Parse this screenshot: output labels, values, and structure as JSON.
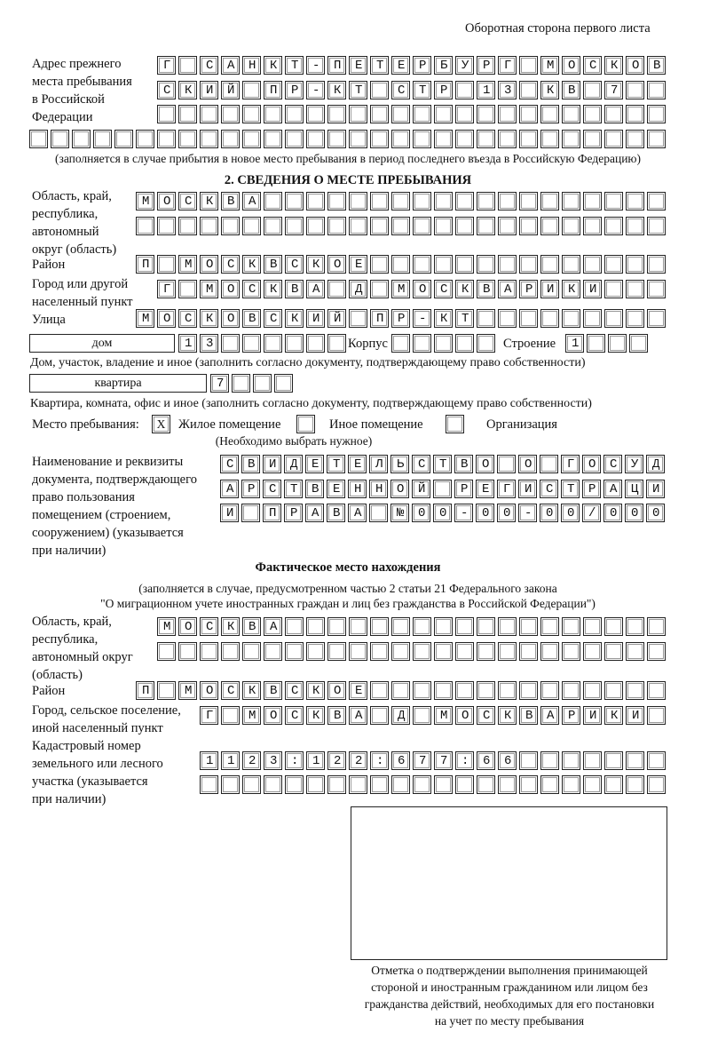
{
  "header": "Оборотная сторона первого листа",
  "previous_address": {
    "label": [
      "Адрес прежнего",
      "места пребывания",
      "в Российской",
      "Федерации"
    ],
    "rows": [
      "Г САНКТ-ПЕТЕРБУРГ МОСКОВ",
      "СКИЙ ПР-КТ СТР 13 КВ 7",
      "",
      ""
    ],
    "note": "(заполняется в случае прибытия в новое место пребывания в период последнего въезда в Российскую Федерацию)"
  },
  "section2": {
    "title": "2. СВЕДЕНИЯ О МЕСТЕ ПРЕБЫВАНИЯ",
    "region_label": [
      "Область, край,",
      "республика,",
      "автономный",
      "округ (область)"
    ],
    "region_rows": [
      "МОСКВА",
      ""
    ],
    "district_label": "Район",
    "district_row": "П МОСКВСКОЕ",
    "city_label": [
      "Город или другой",
      "населенный пункт"
    ],
    "city_row": "Г МОСКВА Д МОСКВАРИКИ",
    "street_label": "Улица",
    "street_row": "МОСКОВСКИЙ ПР-КТ",
    "house_type": "дом",
    "house_row": "13",
    "korpus_label": "Корпус",
    "korpus_row": "",
    "building_label": "Строение",
    "building_row": "1",
    "house_caption": "Дом, участок, владение и иное (заполнить согласно документу, подтверждающему право собственности)",
    "flat_type": "квартира",
    "flat_row": "7",
    "flat_caption": "Квартира, комната, офис и иное (заполнить согласно документу, подтверждающему право собственности)",
    "stay_place_label": "Место пребывания:",
    "options": [
      {
        "label": "Жилое помещение",
        "mark": "X"
      },
      {
        "label": "Иное помещение",
        "mark": ""
      },
      {
        "label": "Организация",
        "mark": ""
      }
    ],
    "options_hint": "(Необходимо выбрать нужное)",
    "document_label": [
      "Наименование и реквизиты",
      "документа, подтверждающего",
      "право пользования",
      "помещением (строением,",
      "сооружением) (указывается",
      "при наличии)"
    ],
    "document_rows": [
      "СВИДЕТЕЛЬСТВО О ГОСУД",
      "АРСТВЕННОЙ РЕГИСТРАЦИ",
      "И ПРАВА №00-00-00/000"
    ]
  },
  "actual": {
    "title": "Фактическое место нахождения",
    "note": [
      "(заполняется в случае, предусмотренном частью 2 статьи 21 Федерального закона",
      "\"О миграционном учете иностранных граждан и лиц без гражданства в Российской Федерации\")"
    ],
    "region_label": [
      "Область, край,",
      "республика,",
      "автономный округ",
      "(область)"
    ],
    "region_rows": [
      "МОСКВА",
      ""
    ],
    "district_label": "Район",
    "district_row": "П МОСКВСКОЕ",
    "city_label": [
      "Город, сельское поселение,",
      "иной населенный пункт"
    ],
    "city_row": "Г МОСКВА Д МОСКВАРИКИ",
    "cadastral_label": [
      "Кадастровый номер",
      "земельного или лесного",
      "участка (указывается",
      "при наличии)"
    ],
    "cadastral_rows": [
      "1123:122:677:66",
      ""
    ]
  },
  "stamp_caption": [
    "Отметка о подтверждении выполнения принимающей",
    "стороной и иностранным гражданином или лицом без",
    "гражданства действий, необходимых для его постановки",
    "на учет по месту пребывания"
  ]
}
